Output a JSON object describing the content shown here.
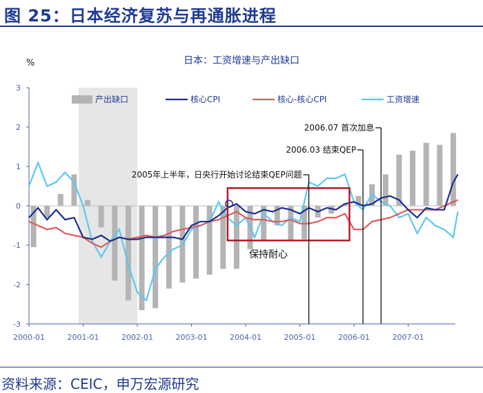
{
  "figure": {
    "title": "图 25：日本经济复苏与再通胀进程",
    "source": "资料来源：CEIC，申万宏源研究"
  },
  "chart_data": {
    "type": "bar+line",
    "title": "日本：工资增速与产出缺口",
    "ylabel": "%",
    "ylim": [
      -3,
      3
    ],
    "yticks": [
      3,
      2,
      1,
      0,
      -1,
      -2,
      -3
    ],
    "xlim": [
      "2000-01",
      "2007-12"
    ],
    "xticks": [
      "2000-01",
      "2001-01",
      "2002-01",
      "2003-01",
      "2004-01",
      "2005-01",
      "2006-01",
      "2007-01"
    ],
    "legend_position": "top",
    "shaded_period": [
      "2000-12",
      "2002-01"
    ],
    "colors": {
      "output_gap": "#b4b4b4",
      "core_cpi": "#1a2d8c",
      "core_core_cpi": "#e0595c",
      "wage_growth": "#5bc8f0",
      "highlight_box": "#b01e24",
      "shade": "#e6e6e6"
    },
    "output_gap": {
      "name": "产出缺口",
      "x": [
        "2000-02",
        "2000-05",
        "2000-08",
        "2000-11",
        "2001-02",
        "2001-05",
        "2001-08",
        "2001-11",
        "2002-02",
        "2002-05",
        "2002-08",
        "2002-11",
        "2003-02",
        "2003-05",
        "2003-08",
        "2003-11",
        "2004-02",
        "2004-05",
        "2004-08",
        "2004-11",
        "2005-02",
        "2005-05",
        "2005-08",
        "2005-11",
        "2006-02",
        "2006-05",
        "2006-08",
        "2006-11",
        "2007-02",
        "2007-05",
        "2007-08",
        "2007-11"
      ],
      "values": [
        -1.05,
        -0.3,
        0.3,
        0.8,
        0.15,
        -0.55,
        -1.9,
        -2.4,
        -2.65,
        -2.6,
        -2.1,
        -1.95,
        -1.85,
        -1.75,
        -1.6,
        -1.6,
        -1.1,
        -0.9,
        -0.5,
        -0.9,
        -0.85,
        -0.3,
        -0.2,
        0.05,
        0.25,
        0.55,
        0.8,
        1.3,
        1.4,
        1.6,
        1.55,
        1.85
      ]
    },
    "core_cpi": {
      "name": "核心CPI",
      "x": [
        "2000-01",
        "2000-03",
        "2000-05",
        "2000-07",
        "2000-09",
        "2000-11",
        "2001-01",
        "2001-03",
        "2001-05",
        "2001-07",
        "2001-09",
        "2001-11",
        "2002-01",
        "2002-03",
        "2002-05",
        "2002-07",
        "2002-09",
        "2002-11",
        "2003-01",
        "2003-03",
        "2003-05",
        "2003-07",
        "2003-09",
        "2003-11",
        "2004-01",
        "2004-03",
        "2004-05",
        "2004-07",
        "2004-09",
        "2004-11",
        "2005-01",
        "2005-03",
        "2005-05",
        "2005-07",
        "2005-09",
        "2005-11",
        "2006-01",
        "2006-03",
        "2006-05",
        "2006-07",
        "2006-09",
        "2006-11",
        "2007-01",
        "2007-03",
        "2007-05",
        "2007-07",
        "2007-09",
        "2007-11",
        "2007-12"
      ],
      "values": [
        -0.3,
        -0.05,
        -0.35,
        -0.1,
        -0.35,
        -0.3,
        -0.8,
        -0.85,
        -0.75,
        -0.9,
        -0.8,
        -0.85,
        -0.85,
        -0.8,
        -0.8,
        -0.8,
        -0.8,
        -0.85,
        -0.5,
        -0.4,
        -0.4,
        -0.25,
        -0.05,
        0.05,
        -0.15,
        -0.2,
        -0.1,
        -0.15,
        -0.05,
        -0.1,
        -0.2,
        -0.05,
        -0.15,
        -0.05,
        -0.1,
        0.05,
        0.1,
        0.0,
        0.05,
        0.2,
        0.25,
        0.15,
        -0.1,
        -0.3,
        -0.05,
        -0.1,
        -0.1,
        0.6,
        0.8
      ]
    },
    "core_core_cpi": {
      "name": "核心-核心CPI",
      "x": [
        "2000-01",
        "2000-03",
        "2000-05",
        "2000-07",
        "2000-09",
        "2000-11",
        "2001-01",
        "2001-03",
        "2001-05",
        "2001-07",
        "2001-09",
        "2001-11",
        "2002-01",
        "2002-03",
        "2002-05",
        "2002-07",
        "2002-09",
        "2002-11",
        "2003-01",
        "2003-03",
        "2003-05",
        "2003-07",
        "2003-09",
        "2003-11",
        "2004-01",
        "2004-03",
        "2004-05",
        "2004-07",
        "2004-09",
        "2004-11",
        "2005-01",
        "2005-03",
        "2005-05",
        "2005-07",
        "2005-09",
        "2005-11",
        "2006-01",
        "2006-03",
        "2006-05",
        "2006-07",
        "2006-09",
        "2006-11",
        "2007-01",
        "2007-03",
        "2007-05",
        "2007-07",
        "2007-09",
        "2007-11",
        "2007-12"
      ],
      "values": [
        -0.4,
        -0.5,
        -0.6,
        -0.55,
        -0.7,
        -0.75,
        -0.8,
        -0.95,
        -1.05,
        -0.9,
        -0.8,
        -0.85,
        -0.8,
        -0.75,
        -0.8,
        -0.75,
        -0.65,
        -0.6,
        -0.55,
        -0.5,
        -0.4,
        -0.35,
        -0.25,
        -0.15,
        -0.3,
        -0.35,
        -0.35,
        -0.4,
        -0.4,
        -0.35,
        -0.45,
        -0.45,
        -0.4,
        -0.3,
        -0.3,
        -0.2,
        -0.6,
        -0.6,
        -0.4,
        -0.35,
        -0.3,
        -0.2,
        -0.1,
        -0.1,
        -0.1,
        -0.1,
        0.0,
        0.1,
        0.15
      ]
    },
    "wage_growth": {
      "name": "工资增速",
      "x": [
        "2000-01",
        "2000-03",
        "2000-05",
        "2000-07",
        "2000-09",
        "2000-11",
        "2001-01",
        "2001-03",
        "2001-05",
        "2001-07",
        "2001-09",
        "2001-11",
        "2002-01",
        "2002-03",
        "2002-05",
        "2002-07",
        "2002-09",
        "2002-11",
        "2003-01",
        "2003-03",
        "2003-05",
        "2003-07",
        "2003-09",
        "2003-11",
        "2004-01",
        "2004-03",
        "2004-05",
        "2004-07",
        "2004-09",
        "2004-11",
        "2005-01",
        "2005-03",
        "2005-05",
        "2005-07",
        "2005-09",
        "2005-11",
        "2006-01",
        "2006-03",
        "2006-05",
        "2006-07",
        "2006-09",
        "2006-11",
        "2007-01",
        "2007-03",
        "2007-05",
        "2007-07",
        "2007-09",
        "2007-11",
        "2007-12"
      ],
      "values": [
        0.5,
        1.1,
        0.5,
        0.6,
        0.85,
        0.6,
        0.0,
        -0.9,
        -1.3,
        -0.9,
        -0.6,
        -1.5,
        -2.2,
        -2.4,
        -1.6,
        -1.3,
        -1.1,
        -1.0,
        -0.6,
        -0.5,
        -0.4,
        0.1,
        -0.3,
        -0.5,
        -0.3,
        -0.8,
        -0.2,
        -0.4,
        -0.5,
        -0.3,
        -0.4,
        0.6,
        0.5,
        0.7,
        0.7,
        0.8,
        0.1,
        -0.1,
        0.3,
        0.1,
        0.0,
        -0.3,
        -0.2,
        -0.7,
        -0.3,
        -0.5,
        -0.6,
        -0.8,
        -0.15
      ]
    },
    "highlight_box": {
      "x0": "2003-09",
      "x1": "2005-12",
      "y0": -0.88,
      "y1": 0.45,
      "label": "保持耐心"
    },
    "annotations": [
      {
        "text": "2006.07 首次加息",
        "x": "2006-07"
      },
      {
        "text": "2006.03 结束QEP",
        "x": "2006-03"
      },
      {
        "text": "2005年上半年，日央行开始讨论结束QEP问题",
        "x": "2005-03"
      }
    ]
  }
}
